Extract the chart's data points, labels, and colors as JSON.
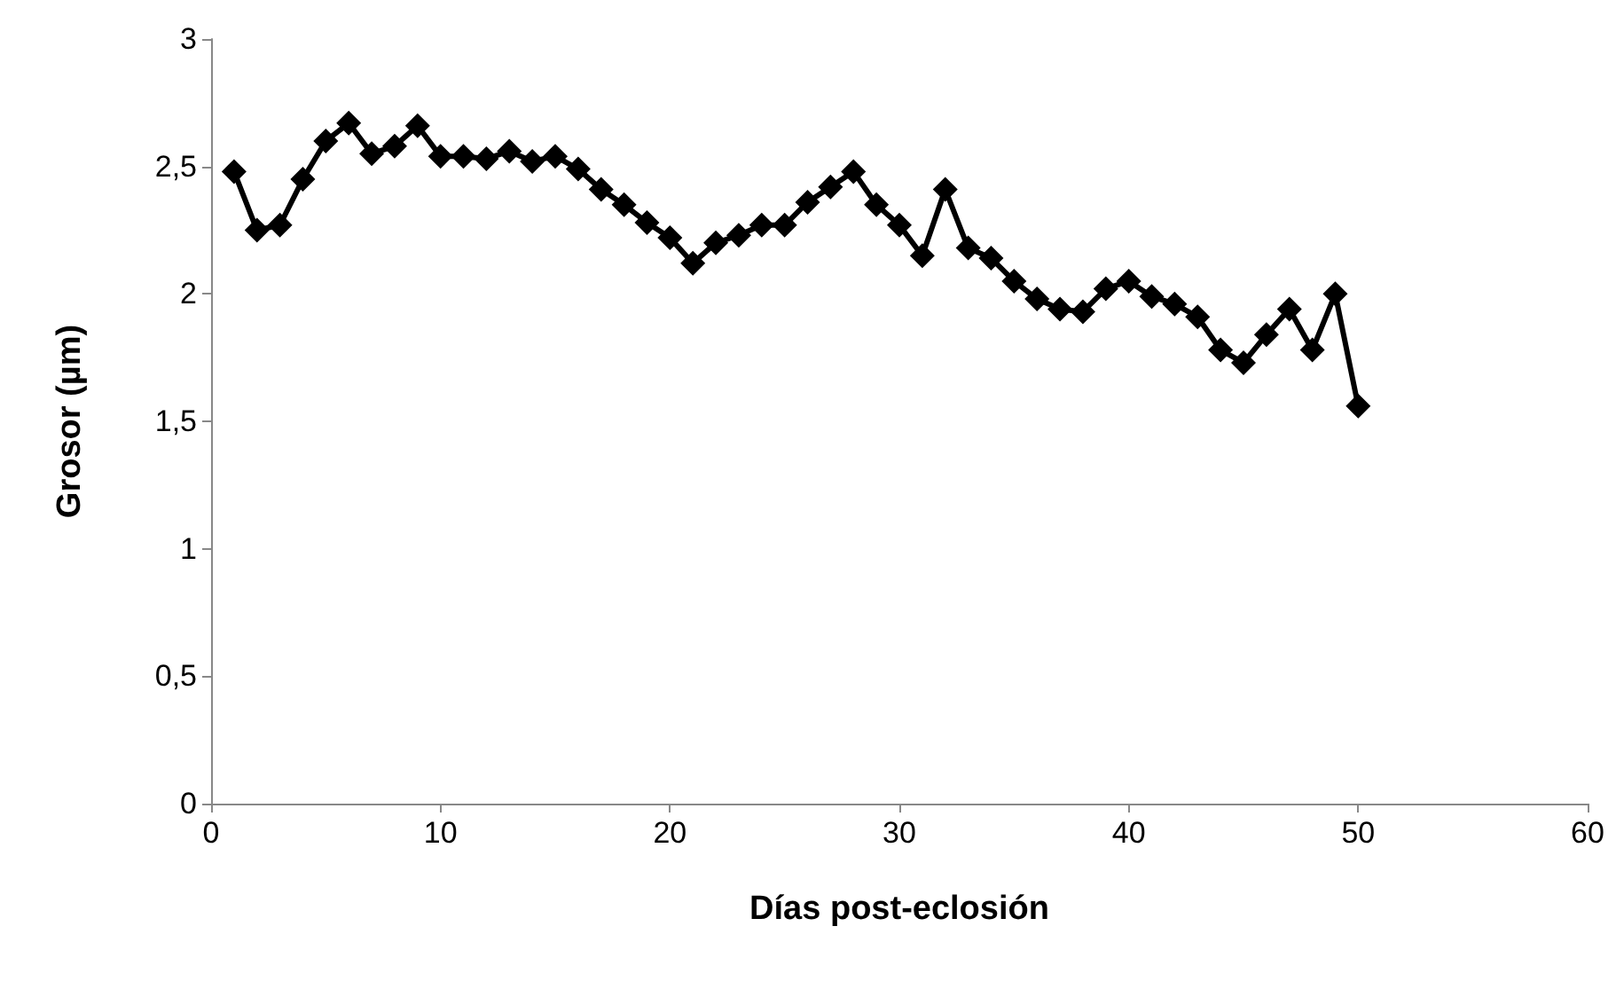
{
  "chart_data": {
    "type": "line",
    "xlabel": "Días post-eclosión",
    "ylabel": "Grosor (µm)",
    "x": [
      1,
      2,
      3,
      4,
      5,
      6,
      7,
      8,
      9,
      10,
      11,
      12,
      13,
      14,
      15,
      16,
      17,
      18,
      19,
      20,
      21,
      22,
      23,
      24,
      25,
      26,
      27,
      28,
      29,
      30,
      31,
      32,
      33,
      34,
      35,
      36,
      37,
      38,
      39,
      40,
      41,
      42,
      43,
      44,
      45,
      46,
      47,
      48,
      49,
      50
    ],
    "series": [
      {
        "color": "#000000",
        "values": [
          2.48,
          2.25,
          2.27,
          2.45,
          2.6,
          2.67,
          2.55,
          2.58,
          2.66,
          2.54,
          2.54,
          2.53,
          2.56,
          2.52,
          2.54,
          2.49,
          2.41,
          2.35,
          2.28,
          2.22,
          2.12,
          2.2,
          2.23,
          2.27,
          2.27,
          2.36,
          2.42,
          2.48,
          2.35,
          2.27,
          2.15,
          2.41,
          2.18,
          2.14,
          2.05,
          1.98,
          1.94,
          1.93,
          2.02,
          2.05,
          1.99,
          1.96,
          1.91,
          1.78,
          1.73,
          1.84,
          1.94,
          1.78,
          2.0,
          1.56
        ]
      }
    ],
    "xlim": [
      0,
      60
    ],
    "xticks": [
      0,
      10,
      20,
      30,
      40,
      50,
      60
    ],
    "ylim": [
      0,
      3
    ],
    "yticks": [
      0,
      {
        "value": 0.5,
        "label": "0,5"
      },
      1,
      {
        "value": 1.5,
        "label": "1,5"
      },
      2,
      {
        "value": 2.5,
        "label": "2,5"
      },
      3
    ],
    "grid": false,
    "marker": "diamond",
    "line_style": "solid"
  }
}
